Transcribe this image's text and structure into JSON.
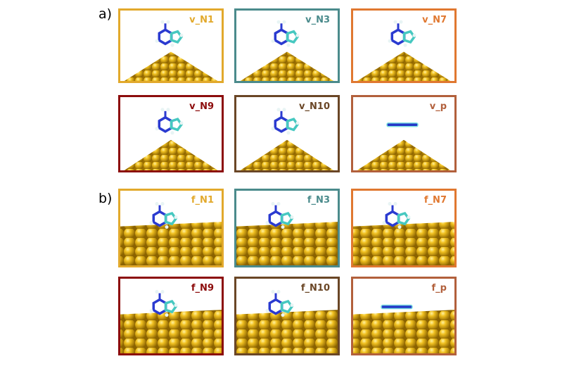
{
  "panels_a": {
    "label": "a)",
    "items": [
      {
        "name": "v_N1",
        "color": "#e2a92c"
      },
      {
        "name": "v_N3",
        "color": "#4b8b8c"
      },
      {
        "name": "v_N7",
        "color": "#e07830"
      },
      {
        "name": "v_N9",
        "color": "#8c0c0c"
      },
      {
        "name": "v_N10",
        "color": "#6a4626"
      },
      {
        "name": "v_p",
        "color": "#b2603c"
      }
    ]
  },
  "panels_b": {
    "label": "b)",
    "items": [
      {
        "name": "f_N1",
        "color": "#e2a92c"
      },
      {
        "name": "f_N3",
        "color": "#4b8b8c"
      },
      {
        "name": "f_N7",
        "color": "#e07830"
      },
      {
        "name": "f_N9",
        "color": "#8c0c0c"
      },
      {
        "name": "f_N10",
        "color": "#6a4626"
      },
      {
        "name": "f_p",
        "color": "#b2603c"
      }
    ]
  }
}
